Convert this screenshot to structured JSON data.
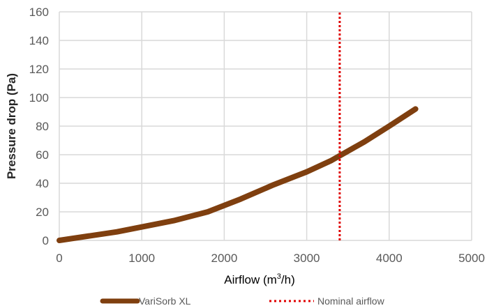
{
  "chart_data": {
    "type": "line",
    "xlabel_main": "Airflow (m",
    "xlabel_sup": "3",
    "xlabel_tail": "/h)",
    "ylabel": "Pressure drop (Pa)",
    "xlim": [
      0,
      5000
    ],
    "ylim": [
      0,
      160
    ],
    "xticks": [
      0,
      1000,
      2000,
      3000,
      4000,
      5000
    ],
    "yticks": [
      0,
      20,
      40,
      60,
      80,
      100,
      120,
      140,
      160
    ],
    "grid": true,
    "legend_position": "bottom",
    "series": [
      {
        "name": "VariSorb XL",
        "color": "#7f3f0f",
        "style": "solid",
        "x": [
          0,
          700,
          1400,
          1800,
          2200,
          2600,
          3000,
          3300,
          3700,
          4000,
          4320
        ],
        "y": [
          0,
          6,
          14,
          20,
          29,
          39,
          48,
          56,
          69,
          80,
          92
        ]
      },
      {
        "name": "Nominal airflow",
        "color": "#e00000",
        "style": "dotted",
        "x": [
          3400,
          3400
        ],
        "y": [
          0,
          160
        ]
      }
    ]
  }
}
